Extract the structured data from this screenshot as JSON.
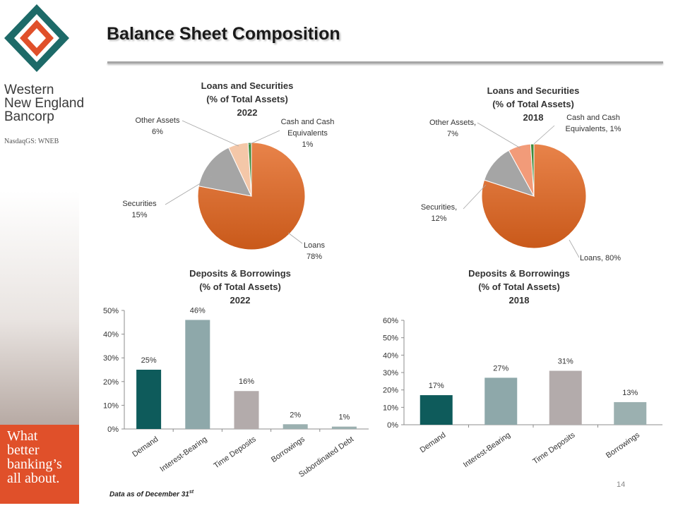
{
  "slide": {
    "title": "Balance Sheet Composition",
    "page_number": "14",
    "footnote": "Data as of December 31",
    "footnote_sup": "st"
  },
  "brand": {
    "line1": "Western",
    "line2": "New England",
    "line3": "Bancorp",
    "ticker": "NasdaqGS: WNEB",
    "colors": {
      "teal": "#1d6a68",
      "orange": "#e0502a"
    }
  },
  "promo": {
    "line1": "What",
    "line2": "better",
    "line3": "banking’s",
    "line4": "all about."
  },
  "chart_data": [
    {
      "type": "pie",
      "title_lines": [
        "Loans and Securities",
        "(% of Total Assets)",
        "2022"
      ],
      "slices": [
        {
          "name": "Loans",
          "value": 78,
          "label_lines": [
            "Loans",
            "78%"
          ],
          "color": "#d9661f"
        },
        {
          "name": "Securities",
          "value": 15,
          "label_lines": [
            "Securities",
            "15%"
          ],
          "color": "#a5a5a5"
        },
        {
          "name": "Other Assets",
          "value": 6,
          "label_lines": [
            "Other Assets",
            "6%"
          ],
          "color": "#f4c7a8"
        },
        {
          "name": "Cash and Cash Equivalents",
          "value": 1,
          "label_lines": [
            "Cash and Cash",
            "Equivalents",
            "1%"
          ],
          "color": "#3d8c3d"
        }
      ]
    },
    {
      "type": "pie",
      "title_lines": [
        "Loans and Securities",
        "(% of Total Assets)",
        "2018"
      ],
      "slices": [
        {
          "name": "Loans",
          "value": 80,
          "label_lines": [
            "Loans, 80%"
          ],
          "color": "#d9661f"
        },
        {
          "name": "Securities",
          "value": 12,
          "label_lines": [
            "Securities,",
            "12%"
          ],
          "color": "#a5a5a5"
        },
        {
          "name": "Other Assets",
          "value": 7,
          "label_lines": [
            "Other Assets,",
            "7%"
          ],
          "color": "#f29b79"
        },
        {
          "name": "Cash and Cash Equivalents",
          "value": 1,
          "label_lines": [
            "Cash and Cash",
            "Equivalents, 1%"
          ],
          "color": "#3d8c3d"
        }
      ]
    },
    {
      "type": "bar",
      "title_lines": [
        "Deposits & Borrowings",
        "(% of Total Assets)",
        "2022"
      ],
      "categories": [
        "Demand",
        "Interest-Bearing",
        "Time Deposits",
        "Borrowings",
        "Subordinated Debt"
      ],
      "values": [
        25,
        46,
        16,
        2,
        1
      ],
      "value_labels": [
        "25%",
        "46%",
        "16%",
        "2%",
        "1%"
      ],
      "colors": [
        "#0e5b5b",
        "#8ea8aa",
        "#b3abab",
        "#9bb0b0",
        "#9bb0b0"
      ],
      "ylim": [
        0,
        50
      ],
      "yticks": [
        0,
        10,
        20,
        30,
        40,
        50
      ],
      "ytick_labels": [
        "0%",
        "10%",
        "20%",
        "30%",
        "40%",
        "50%"
      ]
    },
    {
      "type": "bar",
      "title_lines": [
        "Deposits & Borrowings",
        "(% of Total Assets)",
        "2018"
      ],
      "categories": [
        "Demand",
        "Interest-Bearing",
        "Time Deposits",
        "Borrowings"
      ],
      "values": [
        17,
        27,
        31,
        13
      ],
      "value_labels": [
        "17%",
        "27%",
        "31%",
        "13%"
      ],
      "colors": [
        "#0e5b5b",
        "#8ea8aa",
        "#b3abab",
        "#9bb0b0"
      ],
      "ylim": [
        0,
        60
      ],
      "yticks": [
        0,
        10,
        20,
        30,
        40,
        50,
        60
      ],
      "ytick_labels": [
        "0%",
        "10%",
        "20%",
        "30%",
        "40%",
        "50%",
        "60%"
      ]
    }
  ]
}
